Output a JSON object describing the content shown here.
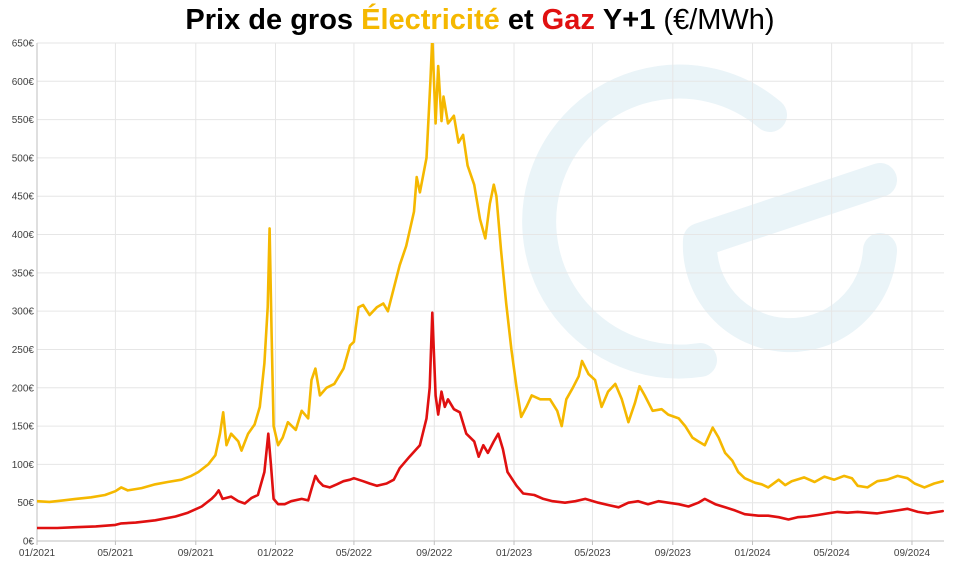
{
  "title": {
    "part1": "Prix de gros",
    "part2": "Électricité",
    "part3": "et",
    "part4": "Gaz",
    "part5": "Y+1",
    "unit": "(€/MWh)"
  },
  "colors": {
    "electricity": "#F5B800",
    "gas": "#E01010",
    "watermark": "#EAF4F8",
    "axis": "#BFBFBF",
    "grid": "#E6E6E6"
  },
  "chart_data": {
    "type": "line",
    "title": "Prix de gros Électricité et Gaz Y+1 (€/MWh)",
    "xlabel": "",
    "ylabel": "",
    "ylim": [
      0,
      650
    ],
    "xlim": [
      "2021-01-01",
      "2024-10-20"
    ],
    "grid": true,
    "legend": "none",
    "yticks": [
      "0€",
      "50€",
      "100€",
      "150€",
      "200€",
      "250€",
      "300€",
      "350€",
      "400€",
      "450€",
      "500€",
      "550€",
      "600€",
      "650€"
    ],
    "xticks": [
      "01/2021",
      "05/2021",
      "09/2021",
      "01/2022",
      "05/2022",
      "09/2022",
      "01/2023",
      "05/2023",
      "09/2023",
      "01/2024",
      "05/2024",
      "09/2024"
    ],
    "series": [
      {
        "color_key": "electricity",
        "points": [
          [
            "2021-01-01",
            52
          ],
          [
            "2021-01-20",
            51
          ],
          [
            "2021-02-10",
            53
          ],
          [
            "2021-03-01",
            55
          ],
          [
            "2021-03-25",
            57
          ],
          [
            "2021-04-15",
            60
          ],
          [
            "2021-05-01",
            65
          ],
          [
            "2021-05-10",
            70
          ],
          [
            "2021-05-20",
            66
          ],
          [
            "2021-06-10",
            69
          ],
          [
            "2021-07-01",
            74
          ],
          [
            "2021-07-20",
            77
          ],
          [
            "2021-08-10",
            80
          ],
          [
            "2021-08-25",
            85
          ],
          [
            "2021-09-05",
            90
          ],
          [
            "2021-09-20",
            100
          ],
          [
            "2021-10-01",
            112
          ],
          [
            "2021-10-08",
            140
          ],
          [
            "2021-10-13",
            168
          ],
          [
            "2021-10-18",
            125
          ],
          [
            "2021-10-25",
            140
          ],
          [
            "2021-11-05",
            130
          ],
          [
            "2021-11-10",
            118
          ],
          [
            "2021-11-20",
            140
          ],
          [
            "2021-11-30",
            152
          ],
          [
            "2021-12-08",
            175
          ],
          [
            "2021-12-15",
            232
          ],
          [
            "2021-12-20",
            305
          ],
          [
            "2021-12-23",
            408
          ],
          [
            "2021-12-26",
            270
          ],
          [
            "2021-12-29",
            150
          ],
          [
            "2022-01-05",
            125
          ],
          [
            "2022-01-12",
            135
          ],
          [
            "2022-01-20",
            155
          ],
          [
            "2022-02-01",
            145
          ],
          [
            "2022-02-10",
            170
          ],
          [
            "2022-02-20",
            160
          ],
          [
            "2022-02-25",
            210
          ],
          [
            "2022-03-03",
            225
          ],
          [
            "2022-03-10",
            190
          ],
          [
            "2022-03-20",
            200
          ],
          [
            "2022-04-01",
            205
          ],
          [
            "2022-04-15",
            225
          ],
          [
            "2022-04-25",
            255
          ],
          [
            "2022-05-01",
            260
          ],
          [
            "2022-05-08",
            305
          ],
          [
            "2022-05-15",
            308
          ],
          [
            "2022-05-25",
            295
          ],
          [
            "2022-06-05",
            305
          ],
          [
            "2022-06-15",
            310
          ],
          [
            "2022-06-22",
            300
          ],
          [
            "2022-07-01",
            330
          ],
          [
            "2022-07-10",
            360
          ],
          [
            "2022-07-20",
            385
          ],
          [
            "2022-08-01",
            430
          ],
          [
            "2022-08-05",
            475
          ],
          [
            "2022-08-10",
            455
          ],
          [
            "2022-08-20",
            500
          ],
          [
            "2022-08-26",
            600
          ],
          [
            "2022-08-29",
            658
          ],
          [
            "2022-09-03",
            545
          ],
          [
            "2022-09-07",
            620
          ],
          [
            "2022-09-12",
            548
          ],
          [
            "2022-09-15",
            580
          ],
          [
            "2022-09-22",
            545
          ],
          [
            "2022-10-01",
            555
          ],
          [
            "2022-10-08",
            520
          ],
          [
            "2022-10-15",
            530
          ],
          [
            "2022-10-22",
            490
          ],
          [
            "2022-11-01",
            465
          ],
          [
            "2022-11-10",
            420
          ],
          [
            "2022-11-18",
            395
          ],
          [
            "2022-11-25",
            440
          ],
          [
            "2022-12-01",
            465
          ],
          [
            "2022-12-05",
            450
          ],
          [
            "2022-12-12",
            380
          ],
          [
            "2022-12-20",
            310
          ],
          [
            "2022-12-28",
            250
          ],
          [
            "2023-01-05",
            200
          ],
          [
            "2023-01-12",
            162
          ],
          [
            "2023-01-20",
            175
          ],
          [
            "2023-01-28",
            190
          ],
          [
            "2023-02-10",
            185
          ],
          [
            "2023-02-25",
            185
          ],
          [
            "2023-03-08",
            170
          ],
          [
            "2023-03-15",
            150
          ],
          [
            "2023-03-22",
            185
          ],
          [
            "2023-04-01",
            200
          ],
          [
            "2023-04-10",
            215
          ],
          [
            "2023-04-15",
            235
          ],
          [
            "2023-04-25",
            218
          ],
          [
            "2023-05-05",
            210
          ],
          [
            "2023-05-15",
            175
          ],
          [
            "2023-05-25",
            195
          ],
          [
            "2023-06-05",
            205
          ],
          [
            "2023-06-15",
            185
          ],
          [
            "2023-06-25",
            155
          ],
          [
            "2023-07-05",
            180
          ],
          [
            "2023-07-12",
            202
          ],
          [
            "2023-07-20",
            190
          ],
          [
            "2023-08-01",
            170
          ],
          [
            "2023-08-15",
            172
          ],
          [
            "2023-08-25",
            165
          ],
          [
            "2023-09-10",
            160
          ],
          [
            "2023-09-20",
            150
          ],
          [
            "2023-10-01",
            135
          ],
          [
            "2023-10-10",
            130
          ],
          [
            "2023-10-20",
            125
          ],
          [
            "2023-11-01",
            148
          ],
          [
            "2023-11-10",
            135
          ],
          [
            "2023-11-20",
            115
          ],
          [
            "2023-12-01",
            105
          ],
          [
            "2023-12-10",
            90
          ],
          [
            "2023-12-20",
            82
          ],
          [
            "2024-01-05",
            76
          ],
          [
            "2024-01-15",
            74
          ],
          [
            "2024-01-25",
            70
          ],
          [
            "2024-02-10",
            80
          ],
          [
            "2024-02-20",
            73
          ],
          [
            "2024-03-01",
            78
          ],
          [
            "2024-03-20",
            83
          ],
          [
            "2024-04-05",
            77
          ],
          [
            "2024-04-20",
            84
          ],
          [
            "2024-05-05",
            80
          ],
          [
            "2024-05-20",
            85
          ],
          [
            "2024-06-01",
            82
          ],
          [
            "2024-06-10",
            72
          ],
          [
            "2024-06-25",
            70
          ],
          [
            "2024-07-10",
            78
          ],
          [
            "2024-07-25",
            80
          ],
          [
            "2024-08-10",
            85
          ],
          [
            "2024-08-25",
            82
          ],
          [
            "2024-09-05",
            75
          ],
          [
            "2024-09-20",
            70
          ],
          [
            "2024-10-05",
            75
          ],
          [
            "2024-10-18",
            78
          ]
        ]
      },
      {
        "color_key": "gas",
        "points": [
          [
            "2021-01-01",
            17
          ],
          [
            "2021-02-01",
            17
          ],
          [
            "2021-03-01",
            18
          ],
          [
            "2021-04-01",
            19
          ],
          [
            "2021-05-01",
            21
          ],
          [
            "2021-05-10",
            23
          ],
          [
            "2021-06-01",
            24
          ],
          [
            "2021-07-01",
            27
          ],
          [
            "2021-08-01",
            32
          ],
          [
            "2021-08-20",
            37
          ],
          [
            "2021-09-10",
            45
          ],
          [
            "2021-09-25",
            55
          ],
          [
            "2021-10-01",
            60
          ],
          [
            "2021-10-06",
            66
          ],
          [
            "2021-10-12",
            55
          ],
          [
            "2021-10-25",
            58
          ],
          [
            "2021-11-05",
            52
          ],
          [
            "2021-11-15",
            49
          ],
          [
            "2021-11-25",
            56
          ],
          [
            "2021-12-05",
            60
          ],
          [
            "2021-12-15",
            90
          ],
          [
            "2021-12-21",
            140
          ],
          [
            "2021-12-25",
            100
          ],
          [
            "2021-12-29",
            55
          ],
          [
            "2022-01-05",
            48
          ],
          [
            "2022-01-15",
            48
          ],
          [
            "2022-01-25",
            52
          ],
          [
            "2022-02-10",
            55
          ],
          [
            "2022-02-20",
            53
          ],
          [
            "2022-02-25",
            68
          ],
          [
            "2022-03-03",
            85
          ],
          [
            "2022-03-08",
            78
          ],
          [
            "2022-03-15",
            72
          ],
          [
            "2022-03-25",
            70
          ],
          [
            "2022-04-05",
            74
          ],
          [
            "2022-04-15",
            78
          ],
          [
            "2022-04-25",
            80
          ],
          [
            "2022-05-01",
            82
          ],
          [
            "2022-05-15",
            78
          ],
          [
            "2022-05-25",
            75
          ],
          [
            "2022-06-05",
            72
          ],
          [
            "2022-06-20",
            75
          ],
          [
            "2022-07-01",
            80
          ],
          [
            "2022-07-10",
            95
          ],
          [
            "2022-07-25",
            110
          ],
          [
            "2022-08-10",
            125
          ],
          [
            "2022-08-20",
            160
          ],
          [
            "2022-08-25",
            200
          ],
          [
            "2022-08-29",
            298
          ],
          [
            "2022-09-03",
            190
          ],
          [
            "2022-09-07",
            165
          ],
          [
            "2022-09-12",
            195
          ],
          [
            "2022-09-17",
            175
          ],
          [
            "2022-09-22",
            185
          ],
          [
            "2022-10-01",
            172
          ],
          [
            "2022-10-10",
            168
          ],
          [
            "2022-10-20",
            140
          ],
          [
            "2022-11-01",
            130
          ],
          [
            "2022-11-08",
            110
          ],
          [
            "2022-11-15",
            125
          ],
          [
            "2022-11-22",
            115
          ],
          [
            "2022-12-01",
            130
          ],
          [
            "2022-12-08",
            140
          ],
          [
            "2022-12-15",
            120
          ],
          [
            "2022-12-22",
            90
          ],
          [
            "2023-01-05",
            72
          ],
          [
            "2023-01-15",
            62
          ],
          [
            "2023-02-01",
            60
          ],
          [
            "2023-02-15",
            55
          ],
          [
            "2023-03-01",
            52
          ],
          [
            "2023-03-20",
            50
          ],
          [
            "2023-04-05",
            52
          ],
          [
            "2023-04-20",
            55
          ],
          [
            "2023-05-10",
            50
          ],
          [
            "2023-05-25",
            47
          ],
          [
            "2023-06-10",
            44
          ],
          [
            "2023-06-25",
            50
          ],
          [
            "2023-07-10",
            52
          ],
          [
            "2023-07-25",
            48
          ],
          [
            "2023-08-10",
            52
          ],
          [
            "2023-08-25",
            50
          ],
          [
            "2023-09-10",
            48
          ],
          [
            "2023-09-25",
            45
          ],
          [
            "2023-10-10",
            50
          ],
          [
            "2023-10-20",
            55
          ],
          [
            "2023-11-05",
            48
          ],
          [
            "2023-11-20",
            44
          ],
          [
            "2023-12-05",
            40
          ],
          [
            "2023-12-20",
            35
          ],
          [
            "2024-01-10",
            33
          ],
          [
            "2024-01-25",
            33
          ],
          [
            "2024-02-10",
            31
          ],
          [
            "2024-02-25",
            28
          ],
          [
            "2024-03-10",
            31
          ],
          [
            "2024-03-25",
            32
          ],
          [
            "2024-04-10",
            34
          ],
          [
            "2024-04-25",
            36
          ],
          [
            "2024-05-10",
            38
          ],
          [
            "2024-05-25",
            37
          ],
          [
            "2024-06-10",
            38
          ],
          [
            "2024-06-25",
            37
          ],
          [
            "2024-07-10",
            36
          ],
          [
            "2024-07-25",
            38
          ],
          [
            "2024-08-10",
            40
          ],
          [
            "2024-08-25",
            42
          ],
          [
            "2024-09-10",
            38
          ],
          [
            "2024-09-25",
            36
          ],
          [
            "2024-10-10",
            38
          ],
          [
            "2024-10-18",
            39
          ]
        ]
      }
    ]
  }
}
